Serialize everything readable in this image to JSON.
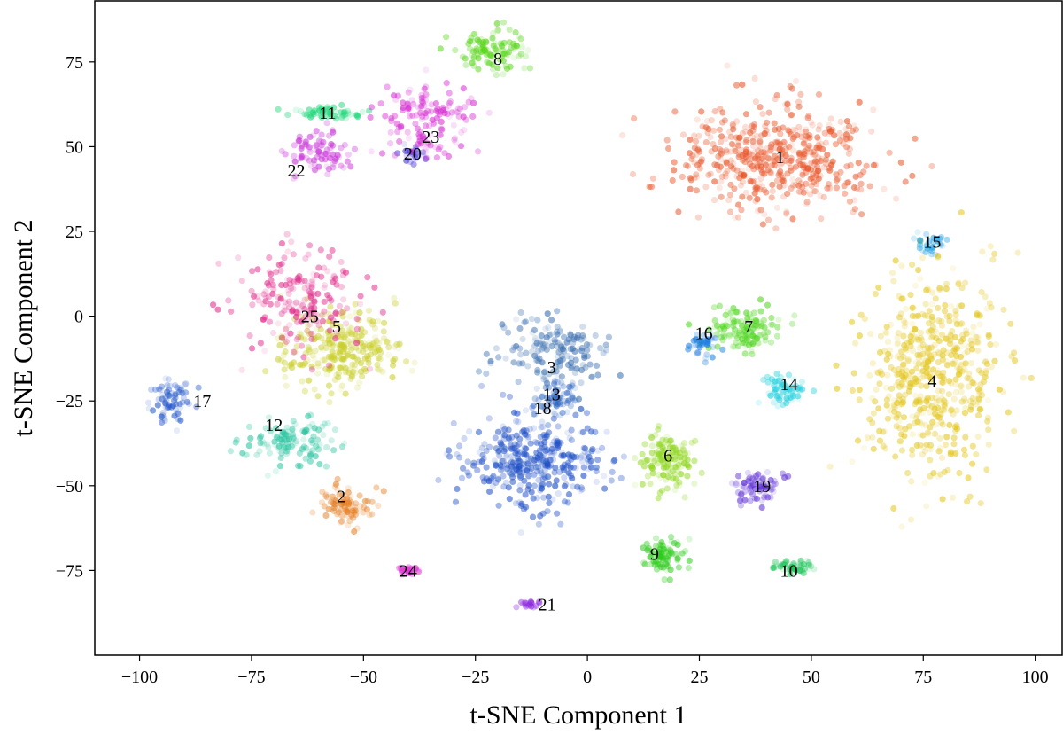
{
  "chart_data": {
    "type": "scatter",
    "xlabel": "t-SNE Component 1",
    "ylabel": "t-SNE Component 2",
    "xlim": [
      -110,
      106
    ],
    "ylim": [
      -100,
      93
    ],
    "xticks": [
      -100,
      -75,
      -50,
      -25,
      0,
      25,
      50,
      75,
      100
    ],
    "yticks": [
      -75,
      -50,
      -25,
      0,
      25,
      50,
      75
    ],
    "grid": false,
    "legend": "none",
    "point_alpha_range": [
      0.1,
      0.6
    ],
    "clusters": [
      {
        "label": "1",
        "color": "#e8562a",
        "center": [
          42,
          47
        ],
        "spread": [
          20,
          14
        ],
        "count": 520,
        "label_pos": [
          43,
          47
        ]
      },
      {
        "label": "2",
        "color": "#e67e22",
        "center": [
          -54,
          -56
        ],
        "spread": [
          5,
          5
        ],
        "count": 90,
        "label_pos": [
          -55,
          -53
        ]
      },
      {
        "label": "3",
        "color": "#3a6fb0",
        "center": [
          -8,
          -10
        ],
        "spread": [
          12,
          10
        ],
        "count": 160,
        "label_pos": [
          -8,
          -15
        ]
      },
      {
        "label": "4",
        "color": "#e3c61c",
        "center": [
          77,
          -17
        ],
        "spread": [
          14,
          27
        ],
        "count": 560,
        "label_pos": [
          77,
          -19
        ]
      },
      {
        "label": "5",
        "color": "#c9cf2a",
        "center": [
          -55,
          -10
        ],
        "spread": [
          12,
          10
        ],
        "count": 280,
        "label_pos": [
          -56,
          -3
        ]
      },
      {
        "label": "6",
        "color": "#8ed61c",
        "center": [
          18,
          -42
        ],
        "spread": [
          6,
          8
        ],
        "count": 140,
        "label_pos": [
          18,
          -41
        ]
      },
      {
        "label": "7",
        "color": "#4ed61c",
        "center": [
          35,
          -4
        ],
        "spread": [
          7,
          6
        ],
        "count": 130,
        "label_pos": [
          36,
          -3
        ]
      },
      {
        "label": "8",
        "color": "#5ad61c",
        "center": [
          -22,
          78
        ],
        "spread": [
          8,
          5
        ],
        "count": 110,
        "label_pos": [
          -20,
          76
        ]
      },
      {
        "label": "9",
        "color": "#2ecc1c",
        "center": [
          17,
          -71
        ],
        "spread": [
          5,
          5
        ],
        "count": 90,
        "label_pos": [
          15,
          -70
        ]
      },
      {
        "label": "10",
        "color": "#1fc45a",
        "center": [
          46,
          -74
        ],
        "spread": [
          4,
          2
        ],
        "count": 50,
        "label_pos": [
          45,
          -75
        ]
      },
      {
        "label": "11",
        "color": "#1fd87a",
        "center": [
          -58,
          60
        ],
        "spread": [
          7,
          2
        ],
        "count": 60,
        "label_pos": [
          -58,
          60
        ]
      },
      {
        "label": "12",
        "color": "#2ec6a2",
        "center": [
          -66,
          -37
        ],
        "spread": [
          8,
          6
        ],
        "count": 120,
        "label_pos": [
          -70,
          -32
        ]
      },
      {
        "label": "13",
        "color": "#2a63c0",
        "center": [
          -7,
          -25
        ],
        "spread": [
          5,
          5
        ],
        "count": 70,
        "label_pos": [
          -8,
          -23
        ]
      },
      {
        "label": "14",
        "color": "#2ad2de",
        "center": [
          44,
          -22
        ],
        "spread": [
          4,
          4
        ],
        "count": 70,
        "label_pos": [
          45,
          -20
        ]
      },
      {
        "label": "15",
        "color": "#1a9fe0",
        "center": [
          77,
          21
        ],
        "spread": [
          3,
          3
        ],
        "count": 30,
        "label_pos": [
          77,
          22
        ]
      },
      {
        "label": "16",
        "color": "#1e7ee0",
        "center": [
          26,
          -8
        ],
        "spread": [
          3,
          3
        ],
        "count": 40,
        "label_pos": [
          26,
          -5
        ]
      },
      {
        "label": "17",
        "color": "#2256c8",
        "center": [
          -93,
          -25
        ],
        "spread": [
          4,
          6
        ],
        "count": 70,
        "label_pos": [
          -86,
          -25
        ]
      },
      {
        "label": "18",
        "color": "#1e4fc6",
        "center": [
          -12,
          -43
        ],
        "spread": [
          14,
          12
        ],
        "count": 380,
        "label_pos": [
          -10,
          -27
        ]
      },
      {
        "label": "19",
        "color": "#5a2ad6",
        "center": [
          38,
          -50
        ],
        "spread": [
          5,
          4
        ],
        "count": 70,
        "label_pos": [
          39,
          -50
        ]
      },
      {
        "label": "20",
        "color": "#4a3ad6",
        "center": [
          -39,
          48
        ],
        "spread": [
          2,
          2
        ],
        "count": 25,
        "label_pos": [
          -39,
          48
        ]
      },
      {
        "label": "21",
        "color": "#8e2ade",
        "center": [
          -13,
          -85
        ],
        "spread": [
          2,
          1
        ],
        "count": 20,
        "label_pos": [
          -9,
          -85
        ]
      },
      {
        "label": "22",
        "color": "#c62ad6",
        "center": [
          -60,
          48
        ],
        "spread": [
          6,
          5
        ],
        "count": 80,
        "label_pos": [
          -65,
          43
        ]
      },
      {
        "label": "23",
        "color": "#d62ad2",
        "center": [
          -36,
          58
        ],
        "spread": [
          10,
          10
        ],
        "count": 140,
        "label_pos": [
          -35,
          53
        ]
      },
      {
        "label": "24",
        "color": "#de3ad2",
        "center": [
          -40,
          -75
        ],
        "spread": [
          2,
          1
        ],
        "count": 30,
        "label_pos": [
          -40,
          -75
        ]
      },
      {
        "label": "25",
        "color": "#e02a8a",
        "center": [
          -64,
          5
        ],
        "spread": [
          12,
          15
        ],
        "count": 200,
        "label_pos": [
          -62,
          0
        ]
      }
    ]
  }
}
